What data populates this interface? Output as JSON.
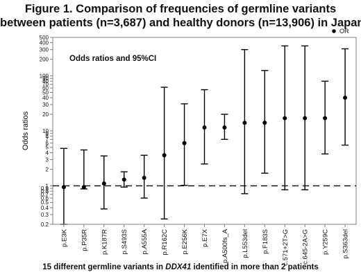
{
  "title_line1": "Figure 1. Comparison of frequencies of germline variants",
  "title_line2": "between patients (n=3,687) and healthy donors (n=13,906) in Japan",
  "footer": {
    "prefix": "15 different germline variants in ",
    "gene": "DDX41",
    "suffix": " identified in more than 2 patients"
  },
  "chart_data": {
    "type": "scatter",
    "subtype": "error-bar",
    "yscale": "log",
    "ylabel": "Odds ratios",
    "ylim": [
      0.2,
      500
    ],
    "yticks": [
      0.2,
      0.3,
      0.4,
      0.5,
      0.6,
      0.7,
      0.8,
      0.9,
      1,
      2,
      3,
      4,
      5,
      6,
      7,
      8,
      9,
      10,
      20,
      30,
      40,
      50,
      60,
      70,
      80,
      90,
      100,
      200,
      300,
      400,
      500
    ],
    "yticklabels": [
      "0.2",
      "0.3",
      "0.4",
      "0.5",
      "0.6",
      "0.7",
      "0.8",
      "0.9",
      "1",
      "2",
      "3",
      "4",
      "5",
      "6",
      "7",
      "8",
      "9",
      "10",
      "20",
      "30",
      "40",
      "50",
      "60",
      "70",
      "80",
      "90",
      "100",
      "200",
      "300",
      "400",
      "500"
    ],
    "annotation": "Odds ratios and 95%CI",
    "legend": {
      "label": "OR",
      "position": "top-right"
    },
    "reference_line": 1,
    "grid": false,
    "categories": [
      "p.E3K",
      "p.P35R",
      "p.K187R",
      "p.S493S",
      "p.A555A",
      "p.R162C",
      "p.E256K",
      "p.E7X",
      "p.A500fs_A",
      "p.L553del",
      "p.F183S",
      "c.571+2T>G",
      "c.645-2A>G",
      "p.Y259C",
      "p.S363del"
    ],
    "series": [
      {
        "name": "OR",
        "values": [
          0.95,
          0.95,
          1.1,
          1.3,
          1.4,
          3.6,
          6.0,
          11.5,
          11.5,
          14.0,
          14.0,
          17.0,
          17.0,
          17.0,
          40.0
        ],
        "lower": [
          0.2,
          0.88,
          0.38,
          0.95,
          0.6,
          0.25,
          1.02,
          2.5,
          7.0,
          0.72,
          1.7,
          0.85,
          0.85,
          3.8,
          5.5
        ],
        "upper": [
          4.8,
          4.5,
          3.5,
          1.8,
          3.6,
          62,
          31,
          56,
          20,
          300,
          125,
          350,
          350,
          80,
          310
        ]
      }
    ],
    "colors": {
      "marks": "#000000",
      "axis": "#7f7f7f",
      "background": "#ffffff"
    }
  }
}
